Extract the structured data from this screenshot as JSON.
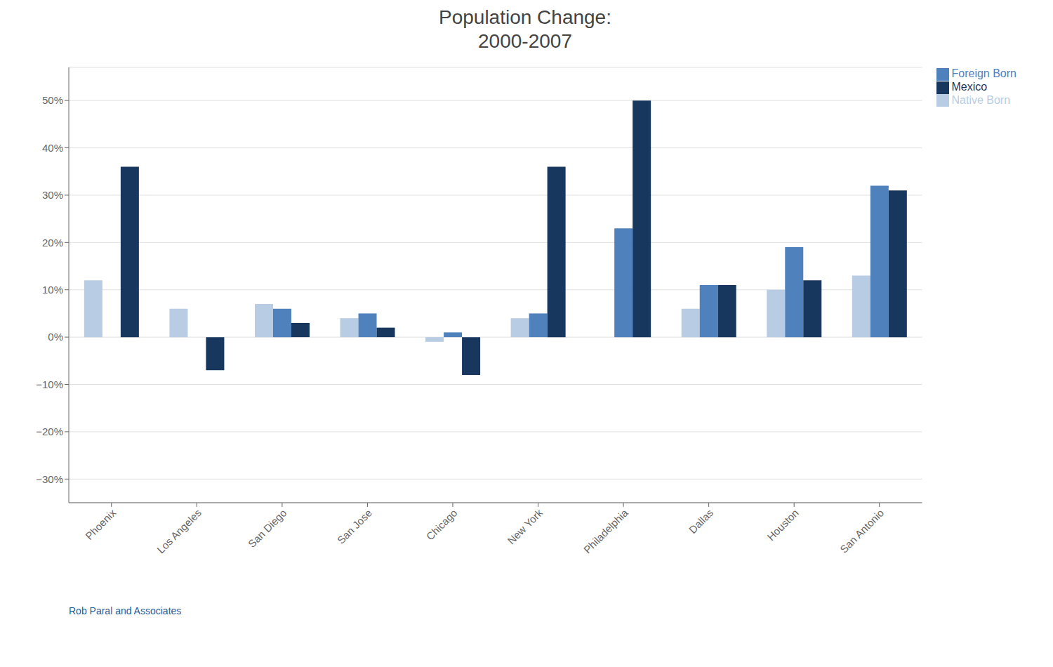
{
  "chart_data": {
    "type": "bar",
    "title": "Population Change:",
    "subtitle": "2000-2007",
    "categories": [
      "Phoenix",
      "Los Angeles",
      "San Diego",
      "San Jose",
      "Chicago",
      "New York",
      "Philadelphia",
      "Dallas",
      "Houston",
      "San Antonio"
    ],
    "series": [
      {
        "name": "Native Born",
        "color": "#b8cce4",
        "values": [
          12,
          6,
          7,
          4,
          -1,
          4,
          0,
          6,
          10,
          13
        ]
      },
      {
        "name": "Foreign Born",
        "color": "#4f81bd",
        "values": [
          0,
          0,
          6,
          5,
          1,
          5,
          23,
          11,
          19,
          32
        ]
      },
      {
        "name": "Mexico",
        "color": "#17375e",
        "values": [
          36,
          -7,
          3,
          2,
          -8,
          36,
          50,
          11,
          12,
          31
        ]
      }
    ],
    "ylim": [
      -35,
      57
    ],
    "yticks": [
      {
        "value": -30,
        "label": "−30%"
      },
      {
        "value": -20,
        "label": "−20%"
      },
      {
        "value": -10,
        "label": "−10%"
      },
      {
        "value": 0,
        "label": "0%"
      },
      {
        "value": 10,
        "label": "10%"
      },
      {
        "value": 20,
        "label": "20%"
      },
      {
        "value": 30,
        "label": "30%"
      },
      {
        "value": 40,
        "label": "40%"
      },
      {
        "value": 50,
        "label": "50%"
      }
    ],
    "grid": true,
    "legend": "upper right",
    "annotations": [
      "Rob Paral and Associates"
    ]
  }
}
